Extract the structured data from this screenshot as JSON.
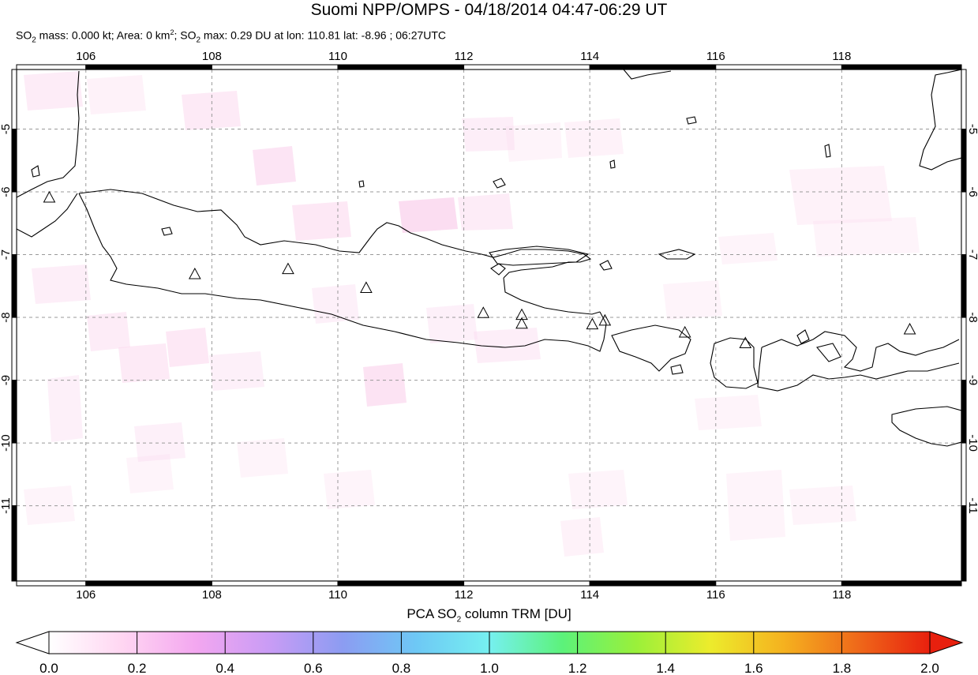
{
  "title": "Suomi NPP/OMPS - 04/18/2014 04:47-06:29 UT",
  "subtitle": {
    "mass_prefix": "SO",
    "mass_sub": "2",
    "mass_text": " mass: 0.000 kt; Area: 0 km",
    "area_sup": "2",
    "max_prefix": "; SO",
    "max_sub": "2",
    "max_text": " max: 0.29 DU at lon: 110.81 lat: -8.96 ; 06:27UTC"
  },
  "map": {
    "lon_labels": [
      "106",
      "108",
      "110",
      "112",
      "114",
      "116",
      "118"
    ],
    "lat_labels": [
      "-5",
      "-6",
      "-7",
      "-8",
      "-9",
      "-10",
      "-11"
    ],
    "lon_range": [
      104.9,
      119.9
    ],
    "lat_range": [
      -4.05,
      -12.2
    ],
    "volcanoes": [
      {
        "lon": 105.42,
        "lat": -6.1
      },
      {
        "lon": 107.73,
        "lat": -7.32
      },
      {
        "lon": 109.21,
        "lat": -7.24
      },
      {
        "lon": 110.45,
        "lat": -7.54
      },
      {
        "lon": 112.31,
        "lat": -7.94
      },
      {
        "lon": 112.92,
        "lat": -7.97
      },
      {
        "lon": 112.92,
        "lat": -8.11
      },
      {
        "lon": 114.04,
        "lat": -8.12
      },
      {
        "lon": 114.24,
        "lat": -8.06
      },
      {
        "lon": 115.51,
        "lat": -8.25
      },
      {
        "lon": 116.47,
        "lat": -8.42
      },
      {
        "lon": 119.08,
        "lat": -8.2
      }
    ]
  },
  "colorbar": {
    "title_prefix": "PCA SO",
    "title_sub": "2",
    "title_suffix": " column TRM [DU]",
    "labels": [
      "0.0",
      "0.2",
      "0.4",
      "0.6",
      "0.8",
      "1.0",
      "1.2",
      "1.4",
      "1.6",
      "1.8",
      "2.0"
    ],
    "colors": [
      "#ffffff",
      "#ffd6f2",
      "#f3a7f0",
      "#c99cf5",
      "#8c9cf2",
      "#6ec8f5",
      "#76f0f0",
      "#5cf27a",
      "#9af03a",
      "#ecec2c",
      "#f5b21f",
      "#ef6a1a",
      "#e8200e"
    ],
    "under_color": "#ffffff",
    "over_color": "#e8200e"
  },
  "colors": {
    "land_outline": "#000000",
    "grid": "#999999",
    "so2_low": "#fbd9ef"
  }
}
